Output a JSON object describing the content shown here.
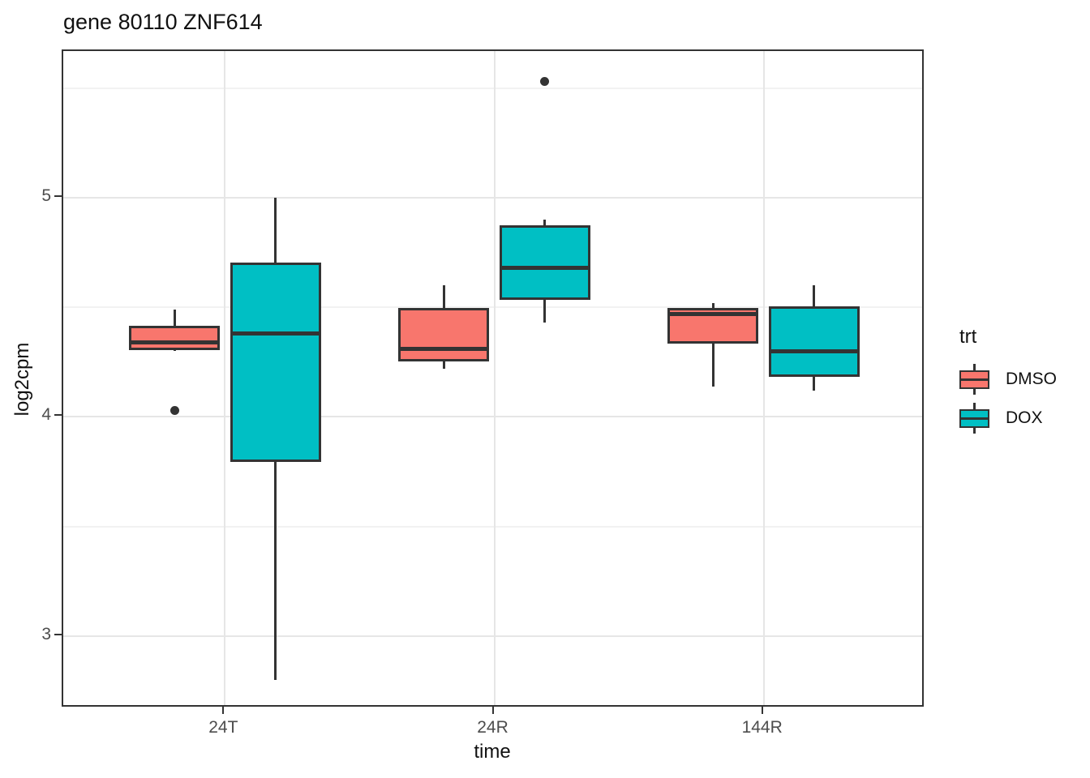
{
  "chart_data": {
    "type": "boxplot",
    "title": "gene 80110 ZNF614",
    "xlabel": "time",
    "ylabel": "log2cpm",
    "categories": [
      "24T",
      "24R",
      "144R"
    ],
    "y_ticks": [
      3,
      4,
      5
    ],
    "y_minor_ticks": [
      3.5,
      4.5,
      5.5
    ],
    "ylim": [
      2.67,
      5.67
    ],
    "grid": true,
    "legend": {
      "title": "trt",
      "position": "right",
      "entries": [
        {
          "label": "DMSO",
          "color": "#F8766D"
        },
        {
          "label": "DOX",
          "color": "#00BFC4"
        }
      ]
    },
    "series": [
      {
        "name": "DMSO",
        "color": "#F8766D",
        "boxes": [
          {
            "category": "24T",
            "whisker_low": 4.3,
            "q1": 4.31,
            "median": 4.34,
            "q3": 4.41,
            "whisker_high": 4.49,
            "outliers": [
              4.03
            ]
          },
          {
            "category": "24R",
            "whisker_low": 4.22,
            "q1": 4.26,
            "median": 4.31,
            "q3": 4.49,
            "whisker_high": 4.6,
            "outliers": []
          },
          {
            "category": "144R",
            "whisker_low": 4.14,
            "q1": 4.34,
            "median": 4.47,
            "q3": 4.49,
            "whisker_high": 4.52,
            "outliers": []
          }
        ]
      },
      {
        "name": "DOX",
        "color": "#00BFC4",
        "boxes": [
          {
            "category": "24T",
            "whisker_low": 2.8,
            "q1": 3.8,
            "median": 4.38,
            "q3": 4.7,
            "whisker_high": 5.0,
            "outliers": []
          },
          {
            "category": "24R",
            "whisker_low": 4.43,
            "q1": 4.54,
            "median": 4.68,
            "q3": 4.87,
            "whisker_high": 4.9,
            "outliers": [
              5.53
            ]
          },
          {
            "category": "144R",
            "whisker_low": 4.12,
            "q1": 4.19,
            "median": 4.3,
            "q3": 4.5,
            "whisker_high": 4.6,
            "outliers": []
          }
        ]
      }
    ],
    "style_colors": {
      "box_stroke": "#333333",
      "panel_border": "#333333",
      "grid_major": "#e6e6e6",
      "grid_minor": "#f2f2f2",
      "tick_label": "#4d4d4d"
    }
  }
}
